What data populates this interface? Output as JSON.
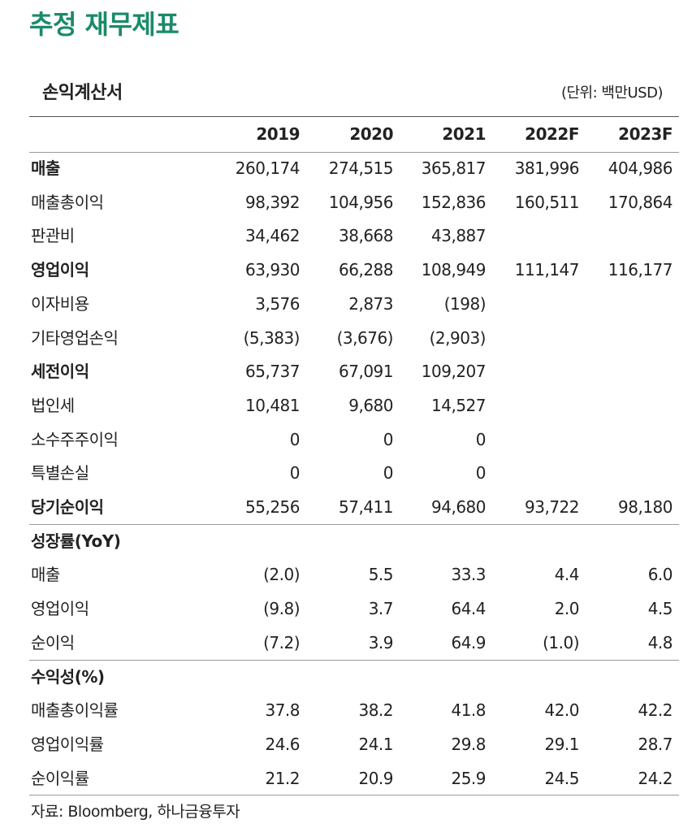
{
  "header": {
    "title": "추정 재무제표"
  },
  "table": {
    "title": "손익계산서",
    "unit": "(단위: 백만USD)",
    "columns": [
      "2019",
      "2020",
      "2021",
      "2022F",
      "2023F"
    ],
    "sections": [
      {
        "rows": [
          {
            "label": "매출",
            "bold": true,
            "cells": [
              "260,174",
              "274,515",
              "365,817",
              "381,996",
              "404,986"
            ]
          },
          {
            "label": "매출총이익",
            "cells": [
              "98,392",
              "104,956",
              "152,836",
              "160,511",
              "170,864"
            ]
          },
          {
            "label": "판관비",
            "cells": [
              "34,462",
              "38,668",
              "43,887",
              null,
              null
            ]
          },
          {
            "label": "영업이익",
            "bold": true,
            "cells": [
              "63,930",
              "66,288",
              "108,949",
              "111,147",
              "116,177"
            ]
          },
          {
            "label": "이자비용",
            "cells": [
              "3,576",
              "2,873",
              "(198)",
              null,
              null
            ]
          },
          {
            "label": "기타영업손익",
            "cells": [
              "(5,383)",
              "(3,676)",
              "(2,903)",
              null,
              null
            ]
          },
          {
            "label": "세전이익",
            "bold": true,
            "cells": [
              "65,737",
              "67,091",
              "109,207",
              null,
              null
            ]
          },
          {
            "label": "법인세",
            "cells": [
              "10,481",
              "9,680",
              "14,527",
              null,
              null
            ]
          },
          {
            "label": "소수주주이익",
            "cells": [
              "0",
              "0",
              "0",
              null,
              null
            ]
          },
          {
            "label": "특별손실",
            "cells": [
              "0",
              "0",
              "0",
              null,
              null
            ]
          },
          {
            "label": "당기순이익",
            "bold": true,
            "cells": [
              "55,256",
              "57,411",
              "94,680",
              "93,722",
              "98,180"
            ]
          }
        ]
      },
      {
        "title": "성장률(YoY)",
        "rows": [
          {
            "label": "매출",
            "cells": [
              "(2.0)",
              "5.5",
              "33.3",
              "4.4",
              "6.0"
            ]
          },
          {
            "label": "영업이익",
            "cells": [
              "(9.8)",
              "3.7",
              "64.4",
              "2.0",
              "4.5"
            ]
          },
          {
            "label": "순이익",
            "cells": [
              "(7.2)",
              "3.9",
              "64.9",
              "(1.0)",
              "4.8"
            ]
          }
        ]
      },
      {
        "title": "수익성(%)",
        "rows": [
          {
            "label": "매출총이익률",
            "cells": [
              "37.8",
              "38.2",
              "41.8",
              "42.0",
              "42.2"
            ]
          },
          {
            "label": "영업이익률",
            "cells": [
              "24.6",
              "24.1",
              "29.8",
              "29.1",
              "28.7"
            ]
          },
          {
            "label": "순이익률",
            "cells": [
              "21.2",
              "20.9",
              "25.9",
              "24.5",
              "24.2"
            ]
          }
        ]
      }
    ]
  },
  "footer": {
    "source": "자료: Bloomberg, 하나금융투자"
  }
}
